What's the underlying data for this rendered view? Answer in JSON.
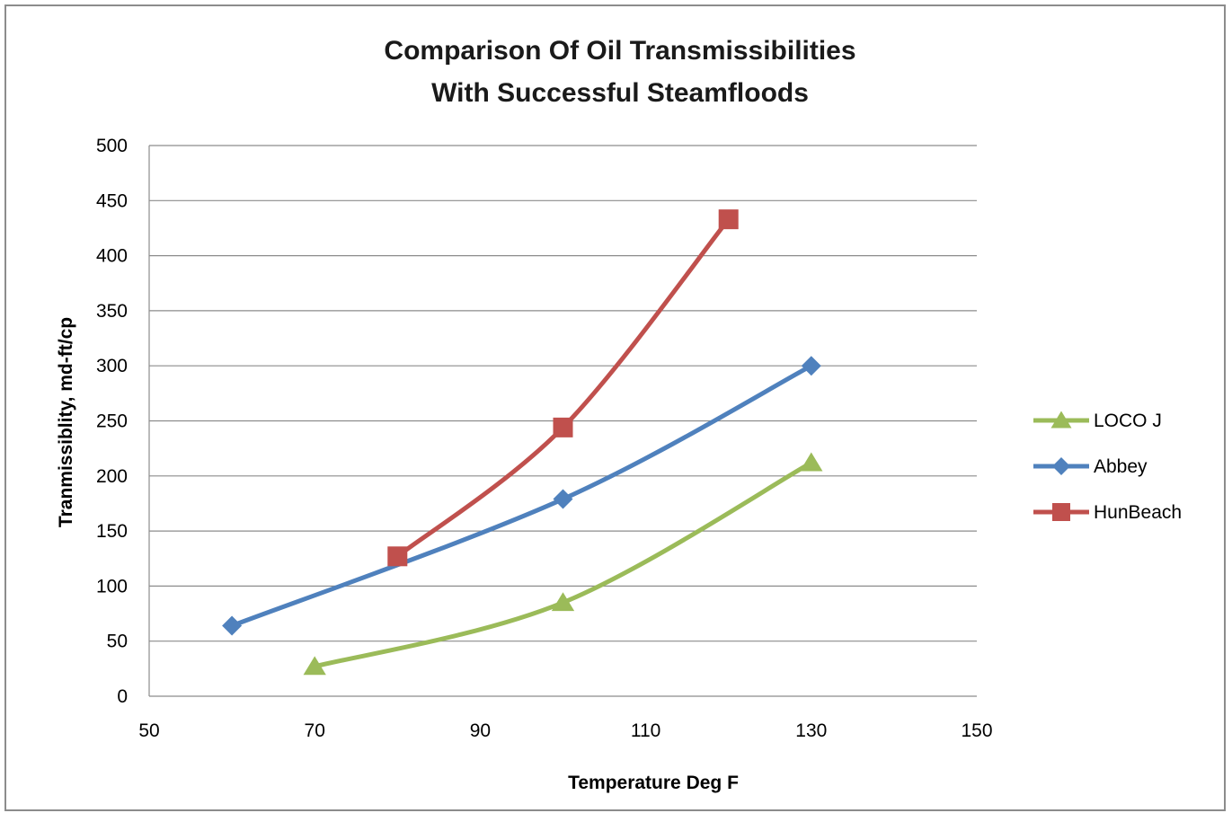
{
  "chart_data": {
    "type": "line",
    "title": [
      "Comparison Of Oil Transmissibilities",
      "With Successful Steamfloods"
    ],
    "xlabel": "Temperature Deg F",
    "ylabel": "Tranmissiblity,  md-ft/cp",
    "xlim": [
      50,
      150
    ],
    "ylim": [
      0,
      500
    ],
    "xticks": [
      50,
      70,
      90,
      110,
      130,
      150
    ],
    "yticks": [
      0,
      50,
      100,
      150,
      200,
      250,
      300,
      350,
      400,
      450,
      500
    ],
    "grid": "horizontal",
    "legend_position": "right",
    "series": [
      {
        "name": "LOCO J",
        "color": "#9bbb59",
        "marker": "triangle",
        "x": [
          70,
          100,
          130
        ],
        "y": [
          27,
          85,
          212
        ]
      },
      {
        "name": "Abbey",
        "color": "#4f81bd",
        "marker": "diamond",
        "x": [
          60,
          100,
          130
        ],
        "y": [
          64,
          179,
          300
        ]
      },
      {
        "name": "HunBeach",
        "color": "#c0504d",
        "marker": "square",
        "x": [
          80,
          100,
          120
        ],
        "y": [
          127,
          244,
          433
        ]
      }
    ]
  }
}
